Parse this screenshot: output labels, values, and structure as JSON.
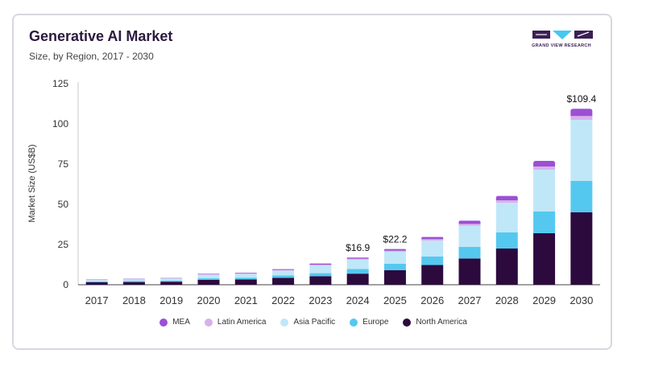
{
  "header": {
    "title": "Generative AI Market",
    "subtitle": "Size, by Region, 2017 - 2030"
  },
  "brand": {
    "logo_text": "GRAND VIEW RESEARCH",
    "colors": {
      "dark": "#3b1f55",
      "accent": "#46c8f0"
    }
  },
  "chart_data": {
    "type": "bar",
    "stacked": true,
    "title": "Generative AI Market",
    "subtitle": "Size, by Region, 2017 - 2030",
    "xlabel": "",
    "ylabel": "Market Size (US$B)",
    "ylim": [
      0,
      125
    ],
    "yticks": [
      0,
      25,
      50,
      75,
      100,
      125
    ],
    "grid": false,
    "legend_position": "bottom",
    "categories": [
      "2017",
      "2018",
      "2019",
      "2020",
      "2021",
      "2022",
      "2023",
      "2024",
      "2025",
      "2026",
      "2027",
      "2028",
      "2029",
      "2030"
    ],
    "series": [
      {
        "name": "North America",
        "color": "#2c0a3e",
        "values": [
          1.5,
          1.7,
          1.9,
          3.0,
          3.3,
          4.3,
          5.3,
          6.9,
          9.0,
          12.3,
          16.3,
          22.5,
          32.0,
          45.0
        ]
      },
      {
        "name": "Europe",
        "color": "#55c8ef",
        "values": [
          0.5,
          0.6,
          0.7,
          1.0,
          1.1,
          1.5,
          1.9,
          2.9,
          4.0,
          5.3,
          7.2,
          10.0,
          13.5,
          19.5
        ]
      },
      {
        "name": "Asia Pacific",
        "color": "#c0e7f8",
        "values": [
          0.9,
          1.0,
          1.2,
          2.2,
          2.3,
          3.0,
          4.8,
          5.8,
          7.5,
          9.8,
          13.2,
          18.5,
          26.0,
          38.0
        ]
      },
      {
        "name": "Latin America",
        "color": "#d9b0ea",
        "values": [
          0.2,
          0.2,
          0.2,
          0.3,
          0.3,
          0.4,
          0.5,
          0.6,
          0.7,
          0.9,
          1.1,
          1.5,
          2.0,
          2.4
        ]
      },
      {
        "name": "MEA",
        "color": "#9c4fd4",
        "values": [
          0.2,
          0.2,
          0.2,
          0.3,
          0.4,
          0.5,
          0.7,
          0.7,
          1.0,
          1.4,
          2.0,
          2.7,
          3.5,
          4.5
        ]
      }
    ],
    "annotations": [
      {
        "category": "2024",
        "label": "$16.9"
      },
      {
        "category": "2025",
        "label": "$22.2"
      },
      {
        "category": "2030",
        "label": "$109.4"
      }
    ],
    "legend_order": [
      "MEA",
      "Latin America",
      "Asia Pacific",
      "Europe",
      "North America"
    ]
  }
}
